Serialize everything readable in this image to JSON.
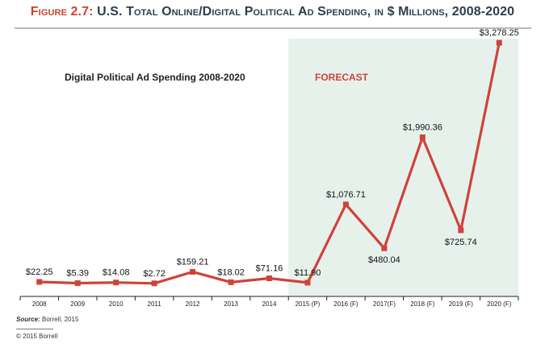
{
  "figure": {
    "label": "Figure 2.7:",
    "title": "U.S. Total Online/Digital Political Ad Spending, in $ Millions, 2008-2020"
  },
  "footer": {
    "source_label": "Source:",
    "source_text": "Borrell, 2015",
    "copyright": "© 2015 Borrell"
  },
  "colors": {
    "line": "#d0423a",
    "forecast_band": "#e6f1ec",
    "axis": "#222222",
    "title": "#2e3d4f",
    "accent": "#c8442f"
  },
  "chart_data": {
    "type": "line",
    "title": "Digital Political Ad Spending 2008-2020",
    "forecast_label": "FORECAST",
    "forecast_start_category": "2015 (P)",
    "categories": [
      "2008",
      "2009",
      "2010",
      "2011",
      "2012",
      "2013",
      "2014",
      "2015 (P)",
      "2016 (F)",
      "2017(F)",
      "2018 (F)",
      "2019 (F)",
      "2020 (F)"
    ],
    "series": [
      {
        "values": [
          22.25,
          5.39,
          14.08,
          2.72,
          159.21,
          18.02,
          71.16,
          11.9,
          1076.71,
          480.04,
          1990.36,
          725.74,
          3278.25
        ],
        "data_labels": [
          "$22.25",
          "$5.39",
          "$14.08",
          "$2.72",
          "$159.21",
          "$18.02",
          "$71.16",
          "$11.90",
          "$1,076.71",
          "$480.04",
          "$1,990.36",
          "$725.74",
          "$3,278.25"
        ]
      }
    ],
    "ylim": [
      0,
      3400
    ],
    "grid": false,
    "legend": "none"
  }
}
